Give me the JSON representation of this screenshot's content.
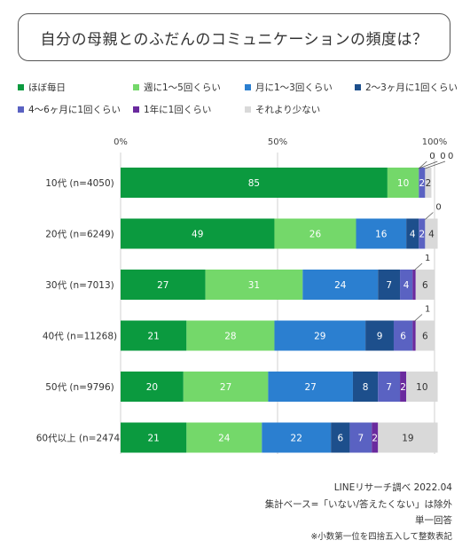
{
  "title": "自分の母親とのふだんのコミュニケーションの頻度は？",
  "legend": [
    {
      "label": "ほぼ毎日",
      "color": "#0b9a3f"
    },
    {
      "label": "週に1～5回くらい",
      "color": "#74d86a"
    },
    {
      "label": "月に1～3回くらい",
      "color": "#2b7fd0"
    },
    {
      "label": "2～3ヶ月に1回くらい",
      "color": "#1d4f8c"
    },
    {
      "label": "4～6ヶ月に1回くらい",
      "color": "#5a62c2"
    },
    {
      "label": "1年に1回くらい",
      "color": "#6a2a9e"
    },
    {
      "label": "それより少ない",
      "color": "#d9d9d9"
    }
  ],
  "chart_data": {
    "type": "bar",
    "orientation": "horizontal",
    "stacked": true,
    "xlim": [
      0,
      100
    ],
    "xticks": [
      "0%",
      "50%",
      "100%"
    ],
    "grid": true,
    "categories": [
      "10代 (n=4050)",
      "20代 (n=6249)",
      "30代 (n=7013)",
      "40代 (n=11268)",
      "50代 (n=9796)",
      "60代以上 (n=2474)"
    ],
    "series": [
      {
        "name": "ほぼ毎日",
        "values": [
          85,
          49,
          27,
          21,
          20,
          21
        ]
      },
      {
        "name": "週に1～5回くらい",
        "values": [
          10,
          26,
          31,
          28,
          27,
          24
        ]
      },
      {
        "name": "月に1～3回くらい",
        "values": [
          0,
          16,
          24,
          29,
          27,
          22
        ]
      },
      {
        "name": "2～3ヶ月に1回くらい",
        "values": [
          0,
          4,
          7,
          9,
          8,
          6
        ]
      },
      {
        "name": "4～6ヶ月に1回くらい",
        "values": [
          2,
          2,
          4,
          6,
          7,
          7
        ]
      },
      {
        "name": "1年に1回くらい",
        "values": [
          0,
          0,
          1,
          1,
          2,
          2
        ]
      },
      {
        "name": "それより少ない",
        "values": [
          2,
          4,
          6,
          6,
          10,
          19
        ]
      }
    ]
  },
  "source": {
    "line1": "LINEリサーチ調べ 2022.04",
    "line2": "集計ベース=「いない/答えたくない」は除外",
    "line3": "単一回答",
    "line4": "※小数第一位を四捨五入して整数表記"
  }
}
